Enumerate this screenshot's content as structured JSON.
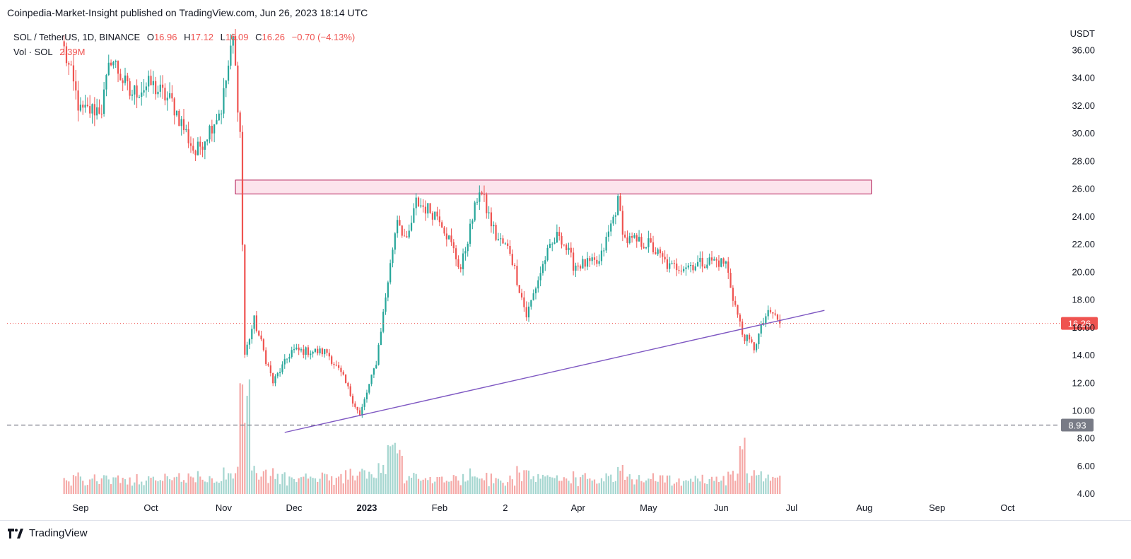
{
  "publisher": "Coinpedia-Market-Insight published on TradingView.com, Jun 26, 2023 18:14 UTC",
  "legend": {
    "symbol": "SOL / TetherUS, 1D, BINANCE",
    "o_label": "O",
    "o_value": "16.96",
    "h_label": "H",
    "h_value": "17.12",
    "l_label": "L",
    "l_value": "16.09",
    "c_label": "C",
    "c_value": "16.26",
    "change": "−0.70 (−4.13%)",
    "vol_label": "Vol · SOL",
    "vol_value": "2.39M"
  },
  "footer": {
    "brand": "TradingView"
  },
  "colors": {
    "up": "#26a69a",
    "down": "#ef5350",
    "up_vol": "#a5d6d0",
    "down_vol": "#f5a9a7",
    "zone_fill": "#fce4ec",
    "zone_stroke": "#b0134f",
    "trendline": "#7e57c2",
    "price_badge": "#ef5350",
    "level_badge": "#787b86"
  },
  "chart_data": {
    "type": "candlestick",
    "quote_unit": "USDT",
    "x_ticks": [
      "Sep",
      "Oct",
      "Nov",
      "Dec",
      "2023",
      "Feb",
      "2",
      "Apr",
      "May",
      "Jun",
      "Jul",
      "Aug",
      "Sep",
      "Oct"
    ],
    "y_ticks": [
      "4.00",
      "6.00",
      "8.00",
      "10.00",
      "12.00",
      "14.00",
      "16.00",
      "18.00",
      "20.00",
      "22.00",
      "24.00",
      "26.00",
      "28.00",
      "30.00",
      "32.00",
      "34.00",
      "36.00"
    ],
    "ylim": [
      3.5,
      37.5
    ],
    "last_price": "16.26",
    "support_level": "8.93",
    "resistance_zone": [
      25.6,
      26.6
    ],
    "trendline": [
      {
        "date": "2022-11-27",
        "price": 8.4
      },
      {
        "date": "2023-06-26",
        "price": 16.3
      },
      {
        "date": "2023-07-15",
        "price": 17.2
      }
    ],
    "series": [
      {
        "date": "2022-08-25",
        "price": 36.0
      },
      {
        "date": "2022-09-01",
        "price": 31.5
      },
      {
        "date": "2022-09-10",
        "price": 31.8
      },
      {
        "date": "2022-09-14",
        "price": 35.5
      },
      {
        "date": "2022-09-22",
        "price": 32.8
      },
      {
        "date": "2022-10-01",
        "price": 33.5
      },
      {
        "date": "2022-10-10",
        "price": 32.2
      },
      {
        "date": "2022-10-20",
        "price": 28.5
      },
      {
        "date": "2022-10-31",
        "price": 31.8
      },
      {
        "date": "2022-11-05",
        "price": 36.8
      },
      {
        "date": "2022-11-08",
        "price": 30.0
      },
      {
        "date": "2022-11-10",
        "price": 14.0
      },
      {
        "date": "2022-11-14",
        "price": 16.5
      },
      {
        "date": "2022-11-22",
        "price": 12.0
      },
      {
        "date": "2022-11-30",
        "price": 14.3
      },
      {
        "date": "2022-12-15",
        "price": 14.2
      },
      {
        "date": "2022-12-22",
        "price": 12.3
      },
      {
        "date": "2022-12-29",
        "price": 9.6
      },
      {
        "date": "2023-01-05",
        "price": 13.5
      },
      {
        "date": "2023-01-14",
        "price": 24.0
      },
      {
        "date": "2023-01-18",
        "price": 22.0
      },
      {
        "date": "2023-01-22",
        "price": 25.0
      },
      {
        "date": "2023-02-01",
        "price": 24.0
      },
      {
        "date": "2023-02-10",
        "price": 20.2
      },
      {
        "date": "2023-02-18",
        "price": 26.0
      },
      {
        "date": "2023-02-25",
        "price": 22.5
      },
      {
        "date": "2023-03-03",
        "price": 21.5
      },
      {
        "date": "2023-03-10",
        "price": 16.8
      },
      {
        "date": "2023-03-18",
        "price": 21.0
      },
      {
        "date": "2023-03-24",
        "price": 22.8
      },
      {
        "date": "2023-03-30",
        "price": 20.5
      },
      {
        "date": "2023-04-10",
        "price": 20.6
      },
      {
        "date": "2023-04-18",
        "price": 25.0
      },
      {
        "date": "2023-04-21",
        "price": 22.3
      },
      {
        "date": "2023-05-01",
        "price": 22.0
      },
      {
        "date": "2023-05-10",
        "price": 20.3
      },
      {
        "date": "2023-05-20",
        "price": 20.5
      },
      {
        "date": "2023-05-28",
        "price": 20.8
      },
      {
        "date": "2023-06-03",
        "price": 20.6
      },
      {
        "date": "2023-06-06",
        "price": 18.2
      },
      {
        "date": "2023-06-10",
        "price": 15.5
      },
      {
        "date": "2023-06-15",
        "price": 14.5
      },
      {
        "date": "2023-06-20",
        "price": 16.8
      },
      {
        "date": "2023-06-23",
        "price": 17.0
      },
      {
        "date": "2023-06-26",
        "price": 16.26
      }
    ]
  }
}
